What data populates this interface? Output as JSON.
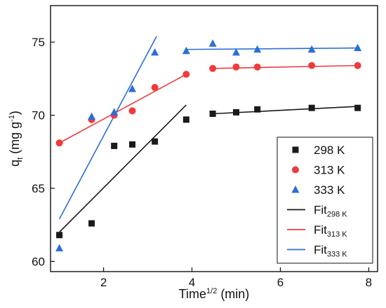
{
  "chart_data": {
    "type": "scatter",
    "xlabel": "Time",
    "xlabel_sup": "1/2",
    "xlabel_unit": " (min)",
    "ylabel_main": "q",
    "ylabel_sub": "t",
    "ylabel_unit": " (mg g",
    "ylabel_unit_sup": "-1",
    "ylabel_close": ")",
    "xlim": [
      0.8,
      8.2
    ],
    "ylim": [
      59.3,
      77.5
    ],
    "xticks": [
      2,
      4,
      6,
      8
    ],
    "yticks": [
      60,
      65,
      70,
      75
    ],
    "legend_position": "bottom-right",
    "series": [
      {
        "name": "298 K",
        "marker": "square",
        "color": "#1a1a1a",
        "x": [
          1.0,
          1.73,
          2.24,
          2.65,
          3.16,
          3.87,
          4.47,
          5.0,
          5.48,
          6.71,
          7.75
        ],
        "y": [
          61.8,
          62.6,
          67.9,
          68.0,
          68.2,
          69.7,
          70.1,
          70.2,
          70.4,
          70.5,
          70.5
        ]
      },
      {
        "name": "313 K",
        "marker": "circle",
        "color": "#ee3b3b",
        "x": [
          1.0,
          1.73,
          2.24,
          2.65,
          3.16,
          3.87,
          4.47,
          5.0,
          5.48,
          6.71,
          7.75
        ],
        "y": [
          68.1,
          69.7,
          70.0,
          70.3,
          71.9,
          72.8,
          73.2,
          73.3,
          73.3,
          73.4,
          73.4
        ]
      },
      {
        "name": "333 K",
        "marker": "triangle",
        "color": "#2b6fd6",
        "x": [
          1.0,
          1.73,
          2.24,
          2.65,
          3.16,
          3.87,
          4.47,
          5.0,
          5.48,
          6.71,
          7.75
        ],
        "y": [
          60.9,
          69.9,
          70.2,
          71.8,
          74.3,
          74.4,
          74.9,
          74.3,
          74.5,
          74.5,
          74.6
        ]
      }
    ],
    "fits": [
      {
        "name": "Fit",
        "name_sub": "298 K",
        "color": "#1a1a1a",
        "segments": [
          {
            "x": [
              1.0,
              3.87
            ],
            "y": [
              62.0,
              70.7
            ]
          },
          {
            "x": [
              4.47,
              7.75
            ],
            "y": [
              70.1,
              70.6
            ]
          }
        ]
      },
      {
        "name": "Fit",
        "name_sub": "313 K",
        "color": "#ee3b3b",
        "segments": [
          {
            "x": [
              1.0,
              3.87
            ],
            "y": [
              68.1,
              72.8
            ]
          },
          {
            "x": [
              4.47,
              7.75
            ],
            "y": [
              73.2,
              73.4
            ]
          }
        ]
      },
      {
        "name": "Fit",
        "name_sub": "333 K",
        "color": "#2b6fd6",
        "segments": [
          {
            "x": [
              1.0,
              3.2
            ],
            "y": [
              62.9,
              75.4
            ]
          },
          {
            "x": [
              3.87,
              7.75
            ],
            "y": [
              74.5,
              74.6
            ]
          }
        ]
      }
    ]
  }
}
